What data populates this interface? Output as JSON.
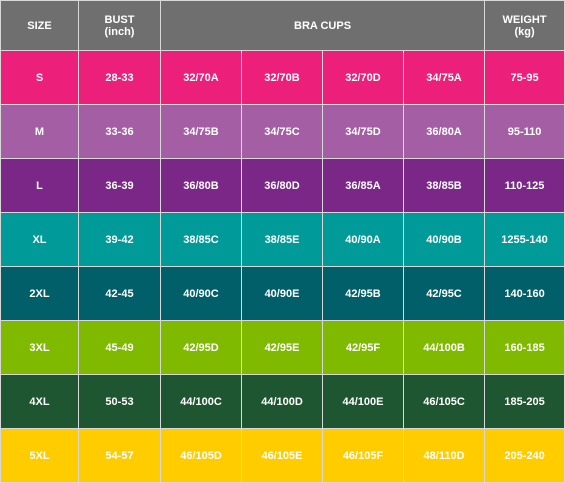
{
  "header": {
    "size": "SIZE",
    "bust_line1": "BUST",
    "bust_line2": "(inch)",
    "bra_cups": "BRA CUPS",
    "weight_line1": "WEIGHT",
    "weight_line2": "(kg)"
  },
  "rows": [
    {
      "size": "S",
      "bust": "28-33",
      "cups": [
        "32/70A",
        "32/70B",
        "32/70D",
        "34/75A"
      ],
      "weight": "75-95",
      "color": "#ec1f7b"
    },
    {
      "size": "M",
      "bust": "33-36",
      "cups": [
        "34/75B",
        "34/75C",
        "34/75D",
        "36/80A"
      ],
      "weight": "95-110",
      "color": "#a45ea4"
    },
    {
      "size": "L",
      "bust": "36-39",
      "cups": [
        "36/80B",
        "36/80D",
        "36/85A",
        "38/85B"
      ],
      "weight": "110-125",
      "color": "#7a2787"
    },
    {
      "size": "XL",
      "bust": "39-42",
      "cups": [
        "38/85C",
        "38/85E",
        "40/90A",
        "40/90B"
      ],
      "weight": "1255-140",
      "color": "#009b98"
    },
    {
      "size": "2XL",
      "bust": "42-45",
      "cups": [
        "40/90C",
        "40/90E",
        "42/95B",
        "42/95C"
      ],
      "weight": "140-160",
      "color": "#005f68"
    },
    {
      "size": "3XL",
      "bust": "45-49",
      "cups": [
        "42/95D",
        "42/95E",
        "42/95F",
        "44/100B"
      ],
      "weight": "160-185",
      "color": "#7fba00"
    },
    {
      "size": "4XL",
      "bust": "50-53",
      "cups": [
        "44/100C",
        "44/100D",
        "44/100E",
        "46/105C"
      ],
      "weight": "185-205",
      "color": "#1e5631"
    },
    {
      "size": "5XL",
      "bust": "54-57",
      "cups": [
        "46/105D",
        "46/105E",
        "46/105F",
        "48/110D"
      ],
      "weight": "205-240",
      "color": "#ffcc00"
    }
  ]
}
